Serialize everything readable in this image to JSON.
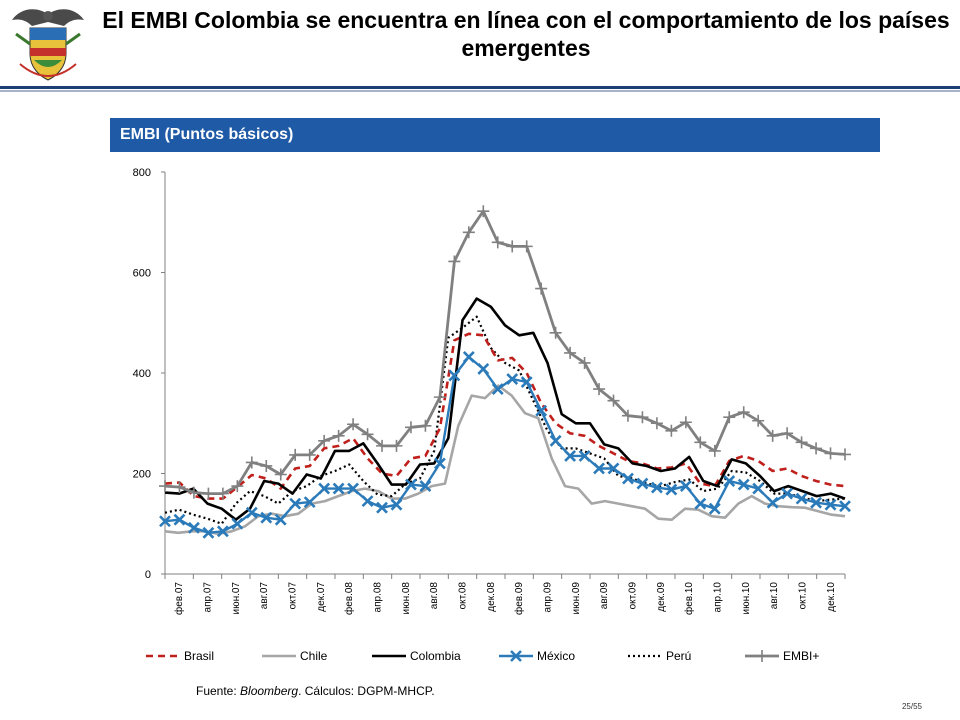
{
  "title": "El EMBI Colombia se encuentra en línea con el comportamiento de los países emergentes",
  "section_heading": "EMBI (Puntos básicos)",
  "source": {
    "prefix": "Fuente: ",
    "italic": "Bloomberg",
    "suffix": ". Cálculos: DGPM-MHCP."
  },
  "page_number": "25/55",
  "colors": {
    "band": "#1f5aa6",
    "title_rule": "#1f3e73",
    "brasil": "#c0201b",
    "chile": "#a6a6a6",
    "colombia": "#000000",
    "mexico": "#2b7ab9",
    "peru": "#000000",
    "embi": "#808080"
  },
  "chart_data": {
    "type": "line",
    "ylim": [
      0,
      800
    ],
    "yticks": [
      "0",
      "200",
      "400",
      "600",
      "800"
    ],
    "grid": false,
    "legend_position": "bottom",
    "x_tick_labels": [
      "фев.07",
      "апр.07",
      "июн.07",
      "авг.07",
      "окт.07",
      "дек.07",
      "фев.08",
      "апр.08",
      "июн.08",
      "авг.08",
      "окт.08",
      "дек.08",
      "фев.09",
      "апр.09",
      "июн.09",
      "авг.09",
      "окт.09",
      "дек.09",
      "фев.10",
      "апр.10",
      "июн.10",
      "авг.10",
      "окт.10",
      "дек.10"
    ],
    "series": [
      {
        "name": "Brasil",
        "style": "dashed",
        "values": [
          180,
          182,
          155,
          150,
          150,
          173,
          197,
          190,
          170,
          210,
          215,
          250,
          255,
          270,
          230,
          200,
          195,
          230,
          235,
          290,
          465,
          478,
          475,
          425,
          430,
          400,
          340,
          300,
          280,
          275,
          255,
          240,
          225,
          220,
          210,
          212,
          220,
          180,
          175,
          225,
          235,
          225,
          205,
          210,
          195,
          185,
          178,
          175
        ]
      },
      {
        "name": "Chile",
        "style": "solid-light",
        "values": [
          85,
          82,
          85,
          85,
          80,
          85,
          95,
          115,
          120,
          115,
          120,
          140,
          145,
          155,
          165,
          170,
          165,
          150,
          150,
          160,
          175,
          180,
          295,
          355,
          350,
          375,
          355,
          320,
          310,
          230,
          175,
          170,
          140,
          145,
          140,
          135,
          130,
          110,
          108,
          130,
          128,
          115,
          112,
          140,
          155,
          140,
          135,
          133,
          132,
          125,
          118,
          115
        ]
      },
      {
        "name": "Colombia",
        "style": "solid",
        "values": [
          162,
          160,
          170,
          140,
          130,
          108,
          130,
          185,
          180,
          160,
          198,
          190,
          245,
          245,
          260,
          220,
          178,
          178,
          218,
          220,
          270,
          505,
          548,
          532,
          495,
          475,
          480,
          420,
          318,
          300,
          300,
          258,
          250,
          220,
          215,
          205,
          210,
          233,
          185,
          175,
          228,
          220,
          195,
          165,
          175,
          165,
          155,
          160,
          150
        ]
      },
      {
        "name": "México",
        "style": "x-marker",
        "values": [
          105,
          108,
          92,
          82,
          85,
          100,
          122,
          112,
          108,
          140,
          143,
          170,
          170,
          170,
          145,
          132,
          138,
          178,
          175,
          220,
          395,
          432,
          408,
          368,
          388,
          382,
          325,
          265,
          235,
          235,
          210,
          210,
          190,
          180,
          172,
          168,
          175,
          140,
          130,
          185,
          178,
          170,
          142,
          160,
          150,
          142,
          138,
          135
        ]
      },
      {
        "name": "Perú",
        "style": "dotted",
        "values": [
          122,
          128,
          118,
          110,
          100,
          140,
          165,
          155,
          140,
          165,
          175,
          195,
          205,
          218,
          185,
          158,
          155,
          180,
          190,
          245,
          470,
          490,
          512,
          450,
          420,
          405,
          345,
          285,
          250,
          250,
          240,
          230,
          195,
          190,
          180,
          175,
          183,
          188,
          165,
          170,
          205,
          202,
          185,
          160,
          160,
          152,
          145,
          148,
          150
        ]
      },
      {
        "name": "EMBI+",
        "style": "plus-marker",
        "values": [
          175,
          173,
          162,
          160,
          160,
          175,
          222,
          215,
          198,
          237,
          237,
          265,
          275,
          298,
          278,
          255,
          255,
          292,
          295,
          352,
          622,
          680,
          722,
          660,
          652,
          652,
          568,
          480,
          440,
          420,
          368,
          345,
          315,
          312,
          300,
          285,
          302,
          262,
          245,
          312,
          322,
          305,
          275,
          280,
          262,
          250,
          240,
          238
        ]
      }
    ]
  }
}
